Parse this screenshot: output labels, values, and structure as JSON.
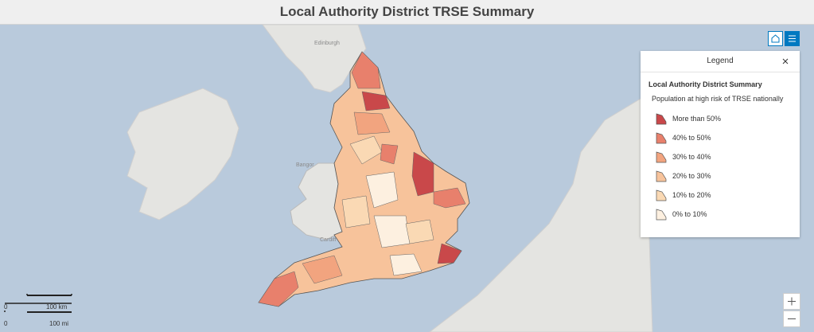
{
  "header": {
    "title": "Local Authority District TRSE Summary"
  },
  "legend": {
    "heading": "Legend",
    "title": "Local Authority District Summary",
    "subtitle": "Population at high risk of TRSE nationally",
    "items": [
      {
        "label": "More than 50%",
        "color": "#c9484a"
      },
      {
        "label": "40% to 50%",
        "color": "#e8806c"
      },
      {
        "label": "30% to 40%",
        "color": "#f2a47f"
      },
      {
        "label": "20% to 30%",
        "color": "#f7c39b"
      },
      {
        "label": "10% to 20%",
        "color": "#fad9b4"
      },
      {
        "label": "0% to 10%",
        "color": "#fdf0e0"
      }
    ]
  },
  "map": {
    "places": [
      "Edinburgh",
      "Bangor",
      "Cardiff"
    ]
  },
  "scale": {
    "km_zero": "0",
    "km": "100 km",
    "mi_zero": "0",
    "mi": "100 mi"
  }
}
